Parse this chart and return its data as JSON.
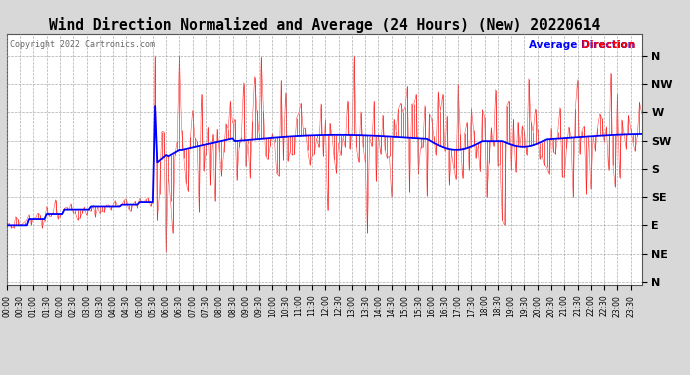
{
  "title": "Wind Direction Normalized and Average (24 Hours) (New) 20220614",
  "copyright": "Copyright 2022 Cartronics.com",
  "legend_avg": "Average Direction",
  "legend_avg_color": "blue",
  "legend_dir_color": "red",
  "background_color": "#d8d8d8",
  "plot_background": "#ffffff",
  "ytick_labels": [
    "N",
    "NE",
    "E",
    "SE",
    "S",
    "SW",
    "W",
    "NW",
    "N"
  ],
  "ytick_values": [
    0,
    45,
    90,
    135,
    180,
    225,
    270,
    315,
    360
  ],
  "ylim": [
    -5,
    395
  ],
  "title_fontsize": 10.5,
  "grid_color": "#999999",
  "grid_style": "--"
}
